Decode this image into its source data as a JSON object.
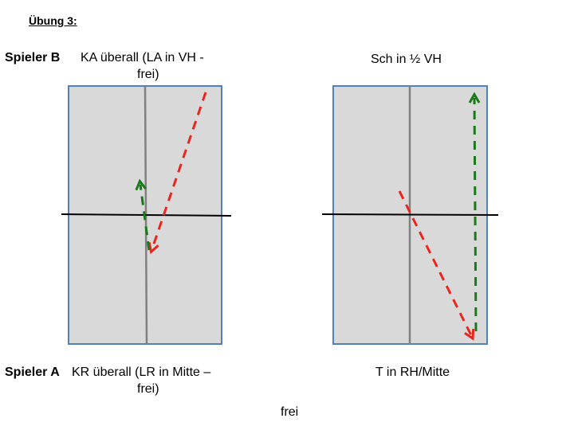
{
  "title": "Übung 3:",
  "player_b": {
    "label": "Spieler B",
    "left_line1": "KA überall (LA in VH -",
    "left_line2": "frei)",
    "right_text": "Sch in ½ VH"
  },
  "player_a": {
    "label": "Spieler A",
    "left_line1": "KR überall (LR in Mitte –",
    "left_line2": "frei)",
    "right_text": "T in RH/Mitte"
  },
  "bottom_text": "frei",
  "colors": {
    "table_fill": "#d9d9d9",
    "table_border": "#4f81bd",
    "center_line": "#808080",
    "net": "#000000",
    "arrow_red": "#e8261e",
    "arrow_green": "#1a7a1a"
  }
}
